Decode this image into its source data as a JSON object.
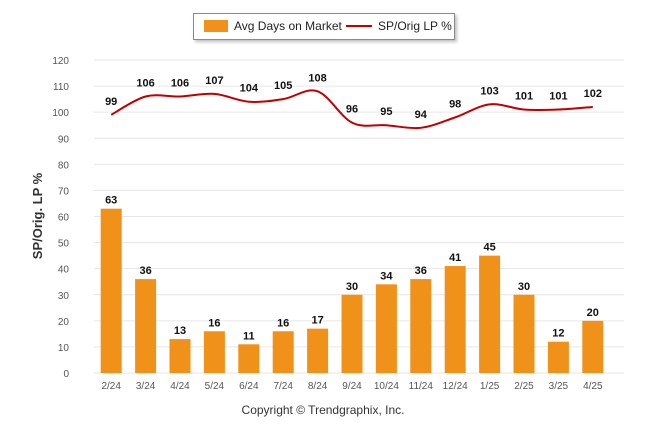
{
  "colors": {
    "bar": "#F0911A",
    "line": "#C00000",
    "grid": "#E6E6E6",
    "axis_text": "#555555",
    "label_text": "#111111"
  },
  "legend": {
    "bar_label": "Avg Days on Market",
    "line_label": "SP/Orig LP %"
  },
  "footer": "Copyright © Trendgraphix, Inc.",
  "chart_data": {
    "type": "bar",
    "ylabel": "SP/Orig. LP %",
    "ylim": [
      0,
      120
    ],
    "yticks": [
      0,
      10,
      20,
      30,
      40,
      50,
      60,
      70,
      80,
      90,
      100,
      110,
      120
    ],
    "grid": true,
    "legend_position": "top-center",
    "categories": [
      "2/24",
      "3/24",
      "4/24",
      "5/24",
      "6/24",
      "7/24",
      "8/24",
      "9/24",
      "10/24",
      "11/24",
      "12/24",
      "1/25",
      "2/25",
      "3/25",
      "4/25"
    ],
    "series": [
      {
        "name": "Avg Days on Market",
        "type": "bar",
        "values": [
          63,
          36,
          13,
          16,
          11,
          16,
          17,
          30,
          34,
          36,
          41,
          45,
          30,
          12,
          20
        ]
      },
      {
        "name": "SP/Orig LP %",
        "type": "line",
        "values": [
          99,
          106,
          106,
          107,
          104,
          105,
          108,
          96,
          95,
          94,
          98,
          103,
          101,
          101,
          102
        ]
      }
    ]
  }
}
